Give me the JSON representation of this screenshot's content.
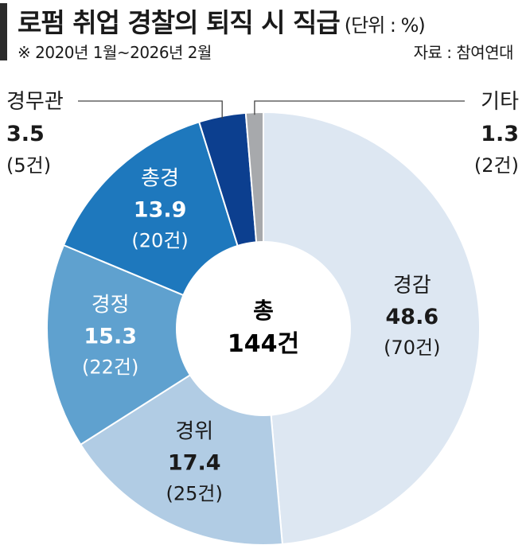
{
  "header": {
    "title": "로펌 취업 경찰의 퇴직 시 직급",
    "unit": "(단위 : %)",
    "period": "※ 2020년 1월~2026년 2월",
    "source": "자료 : 참여연대"
  },
  "center": {
    "label": "총",
    "total": "144건"
  },
  "chart_data": {
    "type": "pie",
    "donut": true,
    "title": "로펌 취업 경찰의 퇴직 시 직급",
    "unit": "%",
    "slices": [
      {
        "name": "경감",
        "value": 48.6,
        "count": "(70건)",
        "color": "#dde7f2"
      },
      {
        "name": "경위",
        "value": 17.4,
        "count": "(25건)",
        "color": "#b1cce4"
      },
      {
        "name": "경정",
        "value": 15.3,
        "count": "(22건)",
        "color": "#5fa1cf"
      },
      {
        "name": "총경",
        "value": 13.9,
        "count": "(20건)",
        "color": "#1e78bd"
      },
      {
        "name": "경무관",
        "value": 3.5,
        "count": "(5건)",
        "color": "#0c3f8f"
      },
      {
        "name": "기타",
        "value": 1.3,
        "count": "(2건)",
        "color": "#a7a9ac"
      }
    ],
    "label_styles": [
      "dark-inside",
      "dark-inside",
      "light-inside",
      "light-inside",
      "callout-left",
      "callout-right"
    ]
  }
}
